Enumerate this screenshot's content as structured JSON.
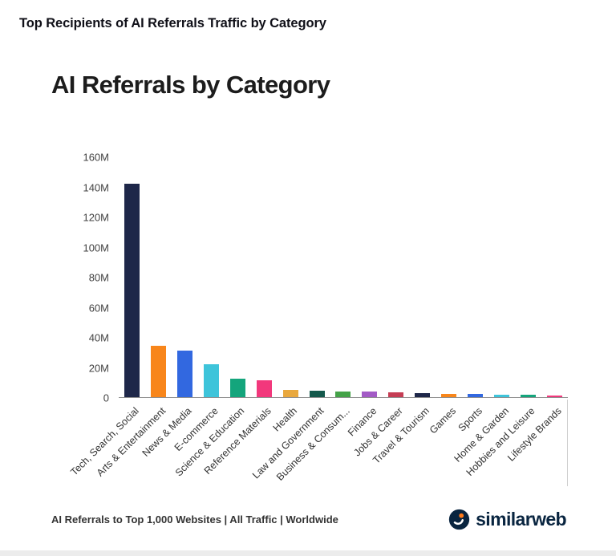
{
  "page": {
    "heading": "Top Recipients of AI Referrals Traffic by Category"
  },
  "chart_data": {
    "type": "bar",
    "title": "AI Referrals by Category",
    "xlabel": "",
    "ylabel": "",
    "unit": "M",
    "ylim": [
      0,
      160
    ],
    "ytick_labels": [
      "160M",
      "140M",
      "120M",
      "100M",
      "80M",
      "60M",
      "40M",
      "20M",
      "0"
    ],
    "grid": false,
    "legend": "none",
    "categories": [
      "Tech, Search, Social",
      "Arts & Entertainment",
      "News & Media",
      "E-commerce",
      "Science & Education",
      "Reference Materials",
      "Health",
      "Law and Government",
      "Business & Consum...",
      "Finance",
      "Jobs & Career",
      "Travel & Tourism",
      "Games",
      "Sports",
      "Home & Garden",
      "Hobbies and Leisure",
      "Lifestyle Brands"
    ],
    "values": [
      142,
      34,
      31,
      22,
      12.5,
      11,
      5,
      4.5,
      4,
      3.5,
      3,
      2.5,
      2.2,
      2,
      1.8,
      1.4,
      1
    ],
    "bar_colors": [
      "#1e2749",
      "#f8861b",
      "#3268e0",
      "#3ec4da",
      "#14a57c",
      "#f2387c",
      "#e9a83e",
      "#14594c",
      "#44a248",
      "#a35bc6",
      "#c53d54",
      "#1e2749",
      "#f8861b",
      "#3268e0",
      "#3ec4da",
      "#14a57c",
      "#f2387c"
    ],
    "accent_colors": {
      "brand_navy": "#092540",
      "brand_orange": "#ff7a1a"
    }
  },
  "footer": {
    "caption": "AI Referrals to Top 1,000 Websites | All Traffic | Worldwide",
    "brand": "similarweb"
  }
}
